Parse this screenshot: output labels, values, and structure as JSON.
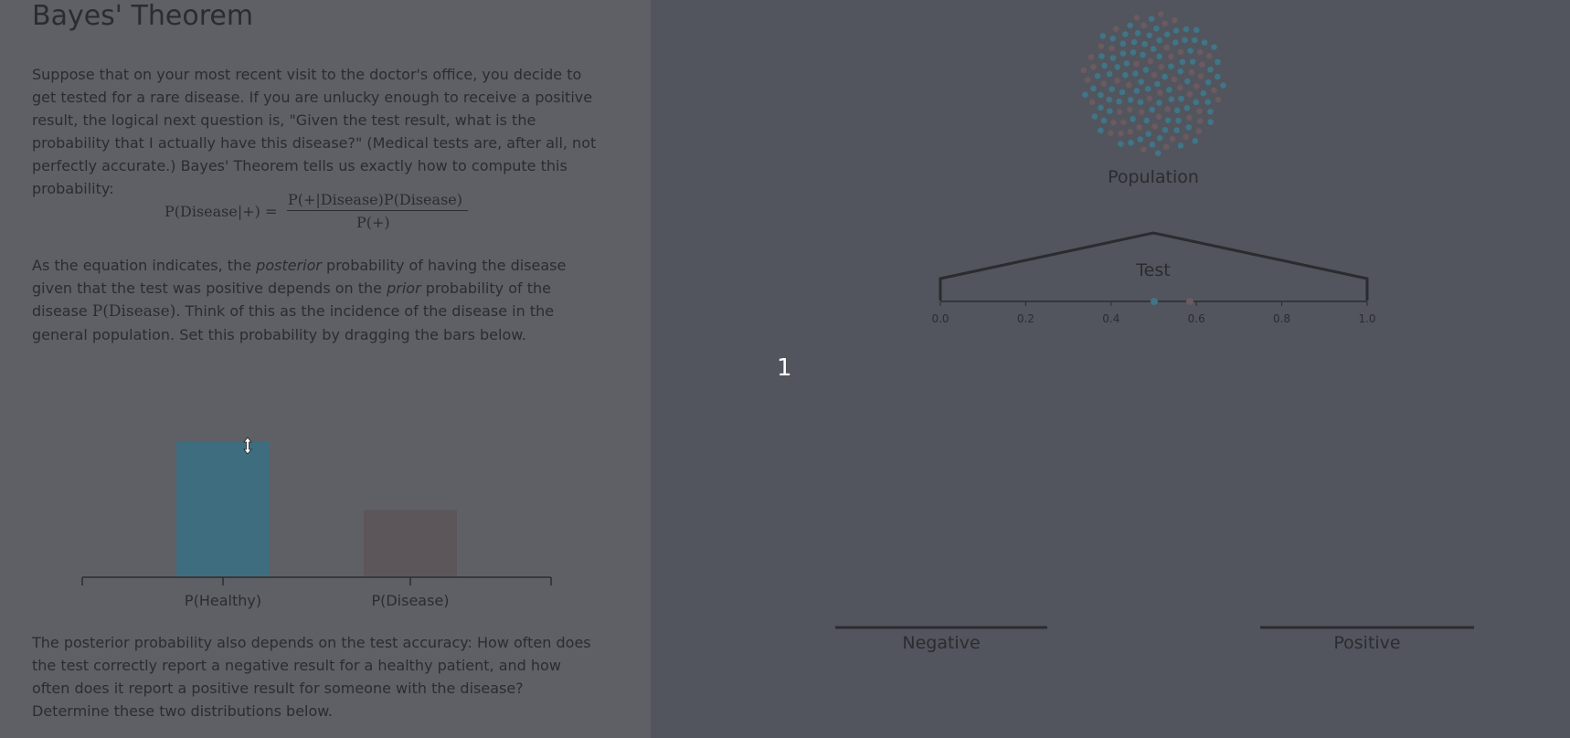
{
  "article": {
    "title": "Bayes' Theorem",
    "intro": "Suppose that on your most recent visit to the doctor's office, you decide to get tested for a rare disease. If you are unlucky enough to receive a positive result, the logical next question is, \"Given the test result, what is the probability that I actually have this disease?\" (Medical tests are, after all, not perfectly accurate.) Bayes' Theorem tells us exactly how to compute this probability:",
    "equation": {
      "lhs": "P(Disease|+) =",
      "numerator": "P(+|Disease)P(Disease)",
      "denominator": "P(+)"
    },
    "prior_text": {
      "p1": "As the equation indicates, the ",
      "em1": "posterior",
      "p2": " probability of having the disease given that the test was positive depends on the ",
      "em2": "prior",
      "p3": " probability of the disease ",
      "math": "P(Disease)",
      "p4": ". Think of this as the incidence of the disease in the general population. Set this probability by dragging the bars below."
    },
    "accuracy_text": "The posterior probability also depends on the test accuracy: How often does the test correctly report a negative result for a healthy patient, and how often does it report a positive result for someone with the disease? Determine these two distributions below."
  },
  "prior_chart": {
    "type": "bar",
    "categories": [
      "P(Healthy)",
      "P(Disease)"
    ],
    "values": [
      0.67,
      0.33
    ],
    "colors": [
      "#3e6d80",
      "#5c5559"
    ],
    "ylim": [
      0,
      1
    ]
  },
  "simulation": {
    "population_label": "Population",
    "test_label": "Test",
    "axis_ticks": [
      "0.0",
      "0.2",
      "0.4",
      "0.6",
      "0.8",
      "1.0"
    ],
    "negative_label": "Negative",
    "positive_label": "Positive",
    "step_counter": "1",
    "healthy_color": "#3f7587",
    "disease_color": "#6b5a60"
  }
}
